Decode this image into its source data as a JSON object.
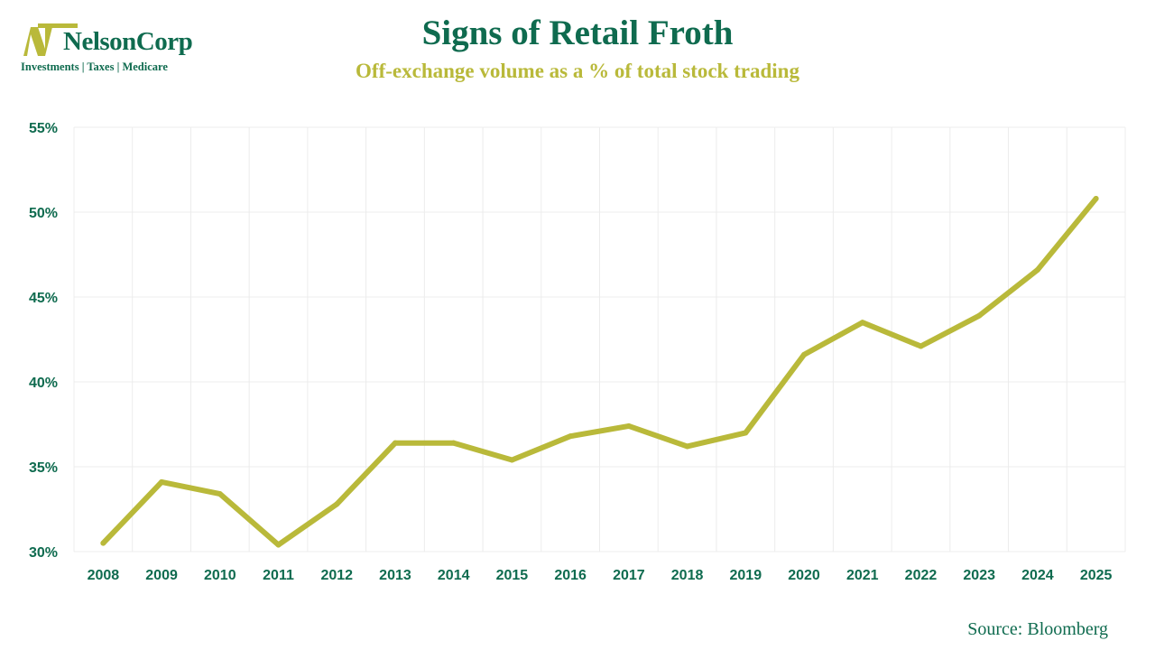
{
  "logo": {
    "name": "NelsonCorp",
    "tagline": "Investments | Taxes | Medicare"
  },
  "colors": {
    "brand_green": "#0f6b4f",
    "brand_gold": "#b9b93a",
    "gridline": "#ececec"
  },
  "chart_data": {
    "type": "line",
    "title": "Signs of Retail Froth",
    "subtitle": "Off-exchange volume as a % of total stock trading",
    "xlabel": "",
    "ylabel": "",
    "categories": [
      "2008",
      "2009",
      "2010",
      "2011",
      "2012",
      "2013",
      "2014",
      "2015",
      "2016",
      "2017",
      "2018",
      "2019",
      "2020",
      "2021",
      "2022",
      "2023",
      "2024",
      "2025"
    ],
    "series": [
      {
        "name": "Off-exchange volume share",
        "values": [
          30.5,
          34.1,
          33.4,
          30.4,
          32.8,
          36.4,
          36.4,
          35.4,
          36.8,
          37.4,
          36.2,
          37.0,
          41.6,
          43.5,
          42.1,
          43.9,
          46.6,
          50.8
        ]
      }
    ],
    "ylim": [
      30,
      55
    ],
    "yticks": [
      30,
      35,
      40,
      45,
      50,
      55
    ],
    "ytick_labels": [
      "30%",
      "35%",
      "40%",
      "45%",
      "50%",
      "55%"
    ],
    "grid": true,
    "legend": "none"
  },
  "source": "Source: Bloomberg"
}
